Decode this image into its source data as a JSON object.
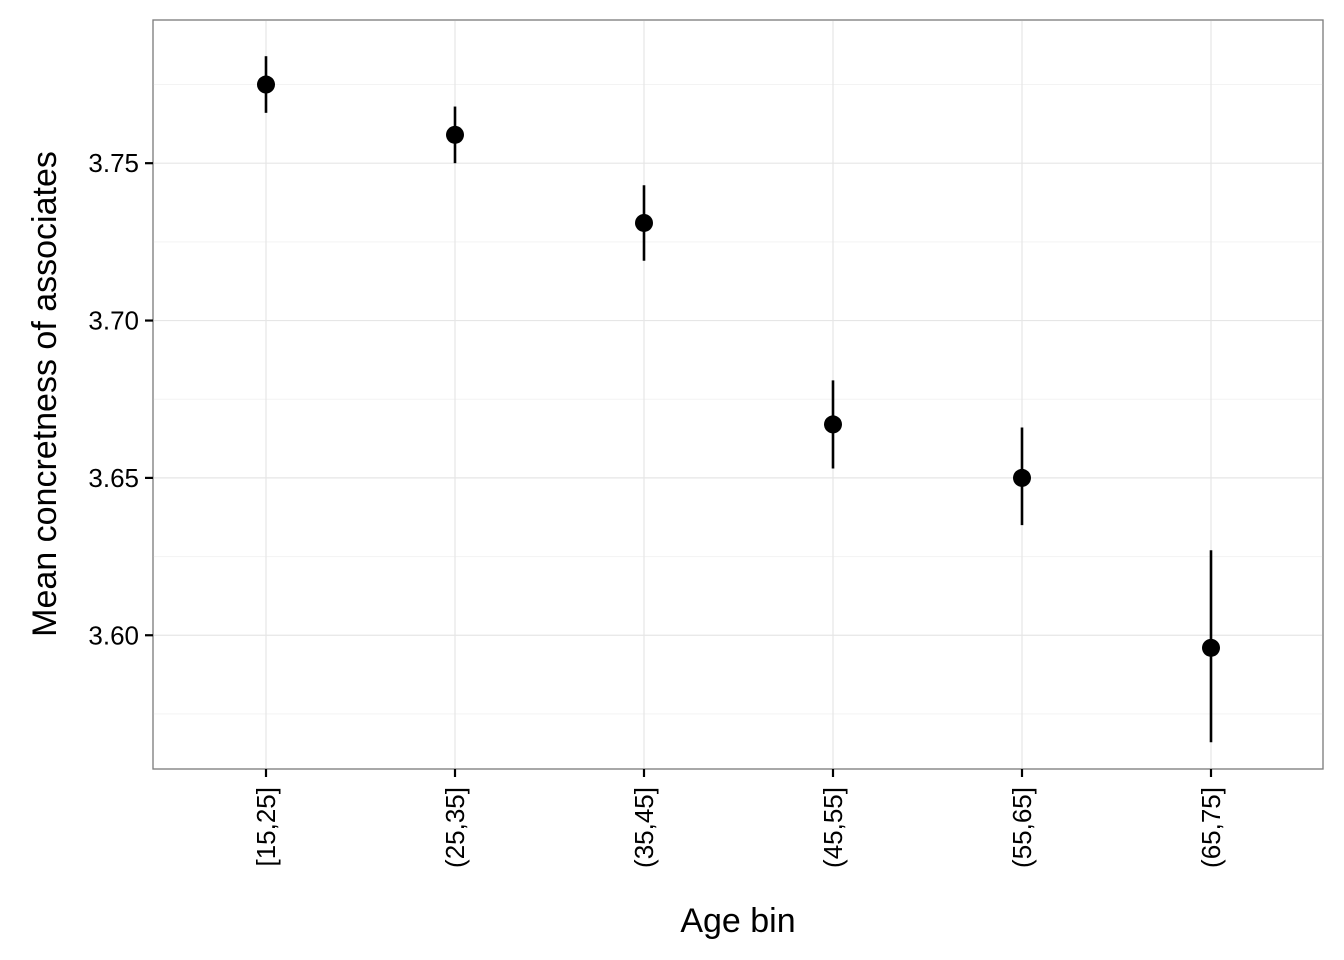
{
  "chart_data": {
    "type": "scatter",
    "title": "",
    "xlabel": "Age bin",
    "ylabel": "Mean concretness of associates",
    "categories": [
      "[15,25]",
      "(25,35]",
      "(35,45]",
      "(45,55]",
      "(55,65]",
      "(65,75]"
    ],
    "values": [
      3.775,
      3.759,
      3.731,
      3.667,
      3.65,
      3.596
    ],
    "error_low": [
      3.766,
      3.75,
      3.719,
      3.653,
      3.635,
      3.566
    ],
    "error_high": [
      3.784,
      3.768,
      3.743,
      3.681,
      3.666,
      3.627
    ],
    "ylim": [
      3.5575,
      3.7955
    ],
    "yticks": [
      3.6,
      3.65,
      3.7,
      3.75
    ],
    "ytick_labels": [
      "3.60",
      "3.65",
      "3.70",
      "3.75"
    ],
    "grid": true,
    "legend": "none"
  }
}
